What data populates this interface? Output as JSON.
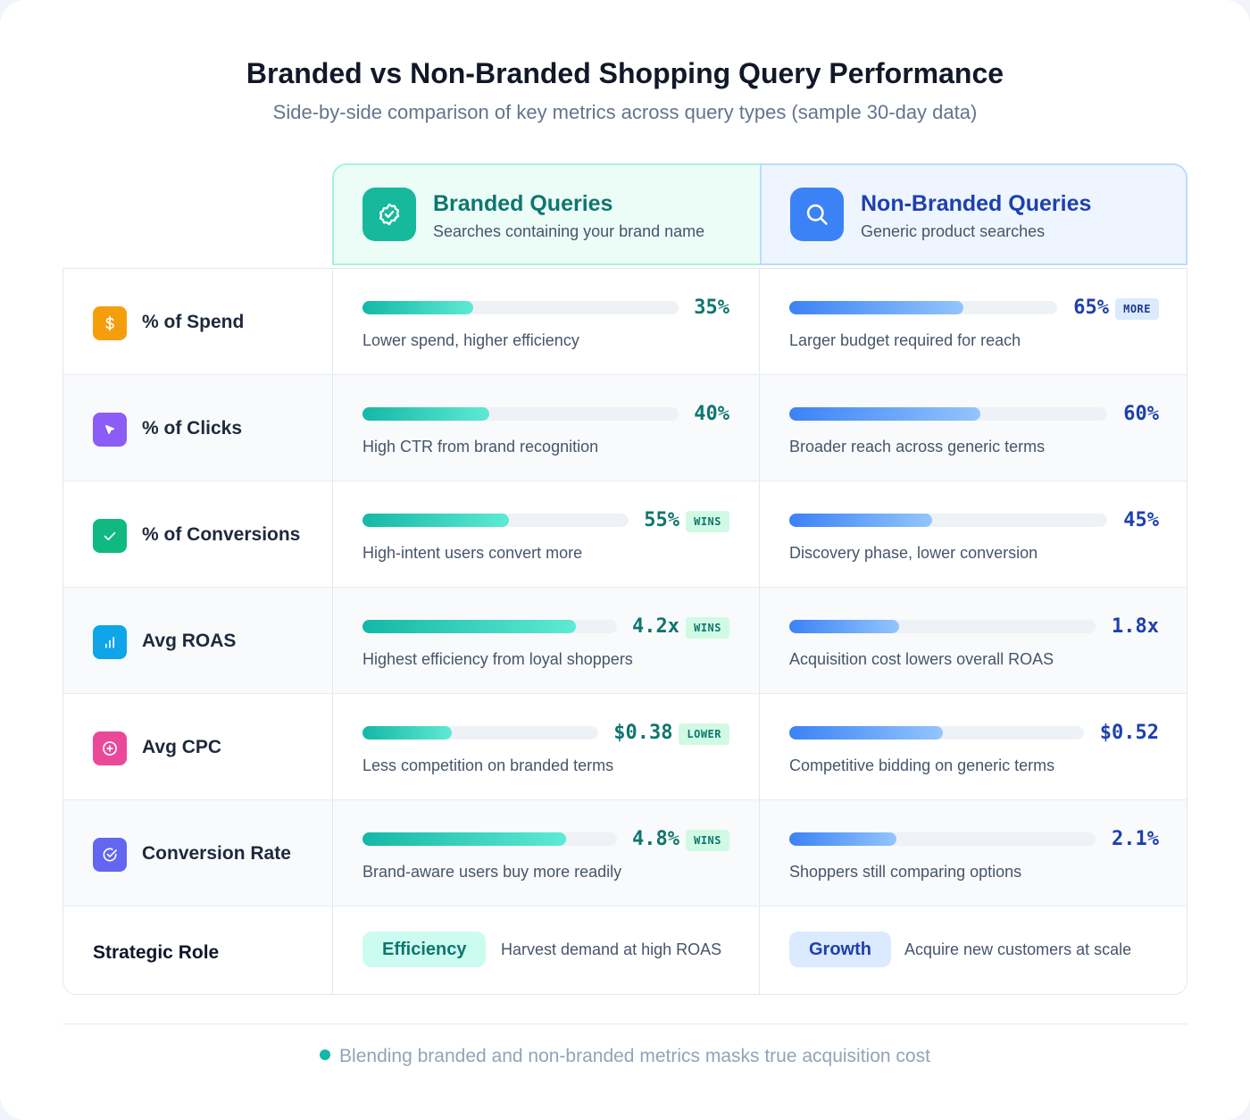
{
  "title": "Branded vs Non-Branded Shopping Query Performance",
  "subtitle": "Side-by-side comparison of key metrics across query types (sample 30-day data)",
  "colors": {
    "branded": "#14b8a6",
    "non_branded": "#3b82f6"
  },
  "columns": {
    "branded": {
      "title": "Branded Queries",
      "subtitle": "Searches containing your brand name",
      "icon": "badge-check-icon"
    },
    "non_branded": {
      "title": "Non-Branded Queries",
      "subtitle": "Generic product searches",
      "icon": "search-icon"
    }
  },
  "chart_data": {
    "type": "table",
    "series": [
      {
        "name": "Branded Queries",
        "values": [
          35,
          40,
          55,
          4.2,
          0.38,
          4.8
        ]
      },
      {
        "name": "Non-Branded Queries",
        "values": [
          65,
          60,
          45,
          1.8,
          0.52,
          2.1
        ]
      }
    ],
    "categories": [
      "% of Spend",
      "% of Clicks",
      "% of Conversions",
      "Avg ROAS",
      "Avg CPC",
      "Conversion Rate"
    ],
    "rows": [
      {
        "metric": "% of Spend",
        "icon": "dollar-icon",
        "icon_color": "#f59e0b",
        "branded": {
          "display": "35%",
          "fill": 0.35,
          "badge": "",
          "note": "Lower spend, higher efficiency"
        },
        "non_branded": {
          "display": "65%",
          "fill": 0.65,
          "badge": "MORE",
          "note": "Larger budget required for reach"
        }
      },
      {
        "metric": "% of Clicks",
        "icon": "cursor-icon",
        "icon_color": "#8b5cf6",
        "branded": {
          "display": "40%",
          "fill": 0.4,
          "badge": "",
          "note": "High CTR from brand recognition"
        },
        "non_branded": {
          "display": "60%",
          "fill": 0.6,
          "badge": "",
          "note": "Broader reach across generic terms"
        }
      },
      {
        "metric": "% of Conversions",
        "icon": "check-icon",
        "icon_color": "#10b981",
        "branded": {
          "display": "55%",
          "fill": 0.55,
          "badge": "WINS",
          "note": "High-intent users convert more"
        },
        "non_branded": {
          "display": "45%",
          "fill": 0.45,
          "badge": "",
          "note": "Discovery phase, lower conversion"
        }
      },
      {
        "metric": "Avg ROAS",
        "icon": "bar-chart-icon",
        "icon_color": "#0ea5e9",
        "branded": {
          "display": "4.2x",
          "fill": 0.84,
          "badge": "WINS",
          "note": "Highest efficiency from loyal shoppers"
        },
        "non_branded": {
          "display": "1.8x",
          "fill": 0.36,
          "badge": "",
          "note": "Acquisition cost lowers overall ROAS"
        }
      },
      {
        "metric": "Avg CPC",
        "icon": "plus-circle-icon",
        "icon_color": "#ec4899",
        "branded": {
          "display": "$0.38",
          "fill": 0.38,
          "badge": "LOWER",
          "note": "Less competition on branded terms"
        },
        "non_branded": {
          "display": "$0.52",
          "fill": 0.52,
          "badge": "",
          "note": "Competitive bidding on generic terms"
        }
      },
      {
        "metric": "Conversion Rate",
        "icon": "check-circle-icon",
        "icon_color": "#6366f1",
        "branded": {
          "display": "4.8%",
          "fill": 0.8,
          "badge": "WINS",
          "note": "Brand-aware users buy more readily"
        },
        "non_branded": {
          "display": "2.1%",
          "fill": 0.35,
          "badge": "",
          "note": "Shoppers still comparing options"
        }
      }
    ]
  },
  "strategic": {
    "label": "Strategic Role",
    "branded": {
      "pill": "Efficiency",
      "text": "Harvest demand at high ROAS"
    },
    "non_branded": {
      "pill": "Growth",
      "text": "Acquire new customers at scale"
    }
  },
  "footnote": "Blending branded and non-branded metrics masks true acquisition cost"
}
